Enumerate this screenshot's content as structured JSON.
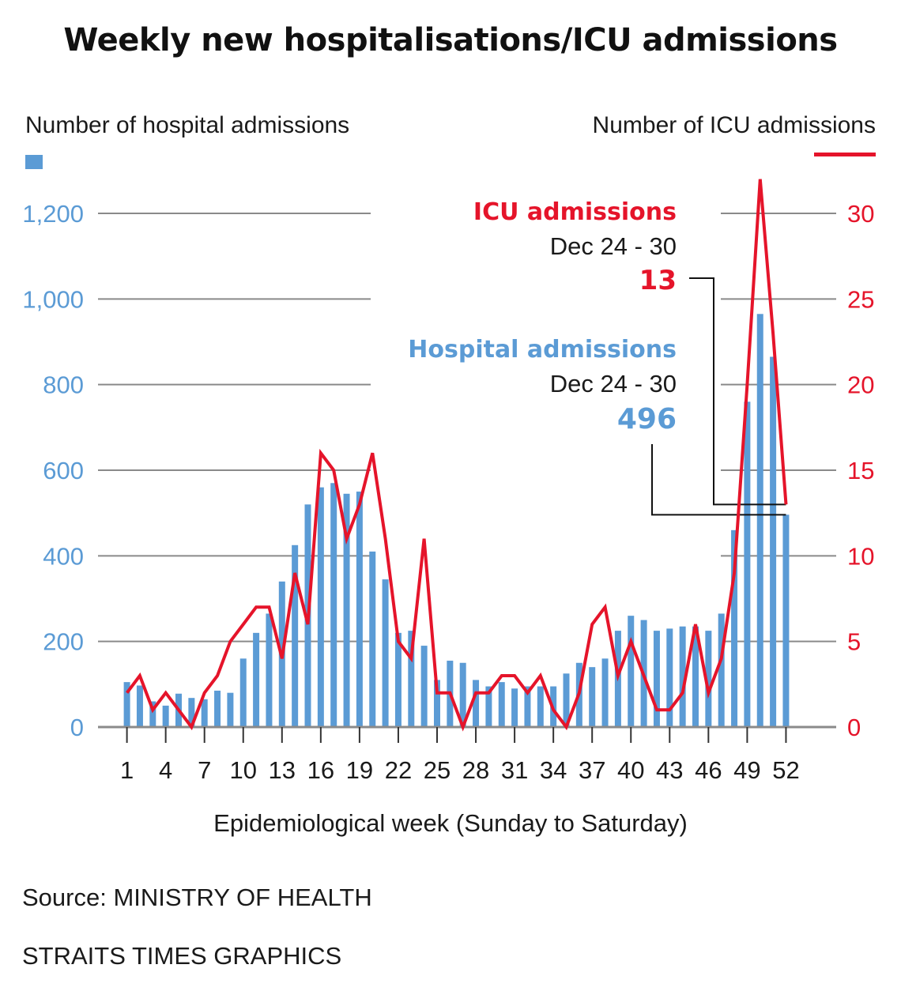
{
  "chart_data": {
    "type": "bar+line",
    "title": "Weekly new hospitalisations/ICU admissions",
    "ylabel_left": "Number of hospital admissions",
    "ylabel_right": "Number of ICU admissions",
    "xlabel": "Epidemiological week (Sunday to Saturday)",
    "x": [
      1,
      2,
      3,
      4,
      5,
      6,
      7,
      8,
      9,
      10,
      11,
      12,
      13,
      14,
      15,
      16,
      17,
      18,
      19,
      20,
      21,
      22,
      23,
      24,
      25,
      26,
      27,
      28,
      29,
      30,
      31,
      32,
      33,
      34,
      35,
      36,
      37,
      38,
      39,
      40,
      41,
      42,
      43,
      44,
      45,
      46,
      47,
      48,
      49,
      50,
      51,
      52
    ],
    "x_tick_labels": [
      "1",
      "4",
      "7",
      "10",
      "13",
      "16",
      "19",
      "22",
      "25",
      "28",
      "31",
      "34",
      "37",
      "40",
      "43",
      "46",
      "49",
      "52"
    ],
    "ylim_left": [
      0,
      1300
    ],
    "left_ticks": [
      0,
      200,
      400,
      600,
      800,
      1000,
      1200
    ],
    "left_tick_labels": [
      "0",
      "200",
      "400",
      "600",
      "800",
      "1,000",
      "1,200"
    ],
    "ylim_right": [
      0,
      32.5
    ],
    "right_ticks": [
      0,
      5,
      10,
      15,
      20,
      25,
      30
    ],
    "right_tick_labels": [
      "0",
      "5",
      "10",
      "15",
      "20",
      "25",
      "30"
    ],
    "grid": true,
    "series": [
      {
        "name": "Hospital admissions",
        "type": "bar",
        "axis": "left",
        "color": "#5b9bd5",
        "values": [
          105,
          97,
          60,
          50,
          78,
          68,
          65,
          85,
          80,
          160,
          220,
          265,
          340,
          425,
          520,
          560,
          570,
          545,
          550,
          410,
          345,
          220,
          225,
          190,
          110,
          155,
          150,
          110,
          95,
          105,
          90,
          95,
          95,
          95,
          125,
          150,
          140,
          160,
          225,
          260,
          250,
          225,
          230,
          235,
          235,
          225,
          265,
          460,
          760,
          965,
          865,
          496
        ]
      },
      {
        "name": "ICU admissions",
        "type": "line",
        "axis": "right",
        "color": "#e5142a",
        "values": [
          2,
          3,
          1,
          2,
          1,
          0,
          2,
          3,
          5,
          6,
          7,
          7,
          4,
          9,
          6,
          16,
          15,
          11,
          13,
          16,
          11,
          5,
          4,
          11,
          2,
          2,
          0,
          2,
          2,
          3,
          3,
          2,
          3,
          1,
          0,
          2,
          6,
          7,
          3,
          5,
          3,
          1,
          1,
          2,
          6,
          2,
          4,
          9,
          20,
          32,
          23,
          13
        ]
      }
    ],
    "annotations": [
      {
        "label": "ICU admissions",
        "period": "Dec 24 - 30",
        "value": "13"
      },
      {
        "label": "Hospital admissions",
        "period": "Dec 24 - 30",
        "value": "496"
      }
    ],
    "source": "Source: MINISTRY OF HEALTH",
    "credit": "STRAITS TIMES GRAPHICS"
  }
}
